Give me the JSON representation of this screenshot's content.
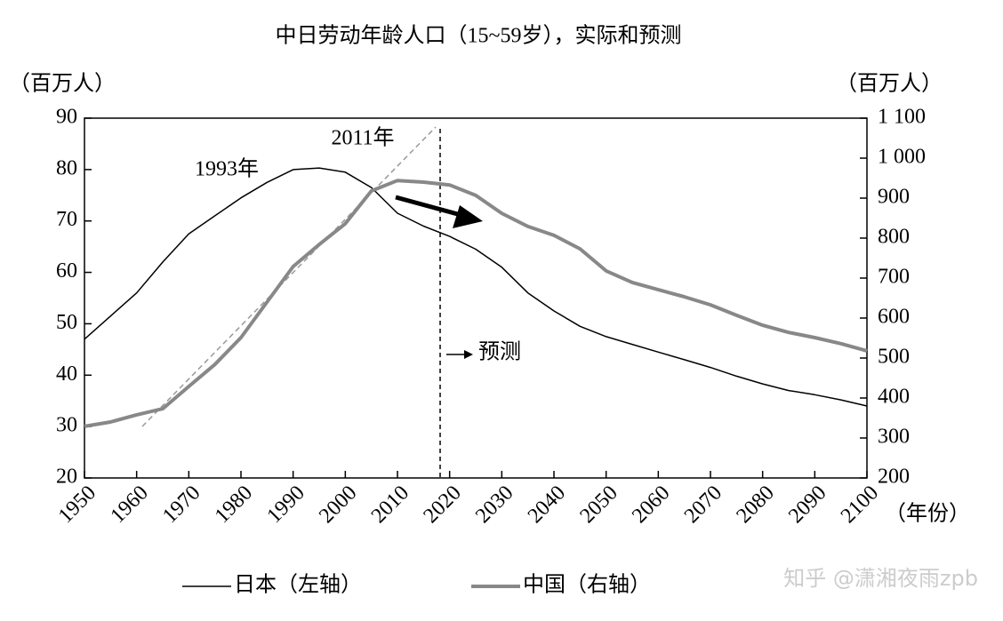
{
  "chart_data": {
    "type": "line",
    "title": "中日劳动年龄人口（15~59岁），实际和预测",
    "y_label": "（百万人）",
    "y2_label": "（百万人）",
    "x_label": "（年份）",
    "x": [
      1950,
      1955,
      1960,
      1965,
      1970,
      1975,
      1980,
      1985,
      1990,
      1995,
      2000,
      2005,
      2010,
      2015,
      2020,
      2025,
      2030,
      2035,
      2040,
      2045,
      2050,
      2055,
      2060,
      2065,
      2070,
      2075,
      2080,
      2085,
      2090,
      2095,
      2100
    ],
    "series": [
      {
        "name": "日本（左轴）",
        "color": "#000000",
        "axis": "y",
        "values": [
          47,
          51.5,
          56,
          62,
          67.5,
          71,
          74.5,
          77.5,
          80,
          80.3,
          79.5,
          76.5,
          71.5,
          69,
          67,
          64.5,
          61,
          56,
          52.5,
          49.5,
          47.5,
          46,
          44.5,
          43,
          41.5,
          39.8,
          38.3,
          37,
          36.2,
          35.2,
          34
        ]
      },
      {
        "name": "中国（右轴）",
        "color": "#888888",
        "axis": "y2",
        "values": [
          329,
          340,
          358,
          373,
          429,
          484,
          551,
          640,
          729,
          784,
          836,
          918,
          944,
          940,
          933,
          907,
          862,
          829,
          807,
          773,
          718,
          689,
          671,
          653,
          633,
          607,
          582,
          564,
          551,
          536,
          518
        ]
      }
    ],
    "xlim": [
      1950,
      2100
    ],
    "xticks": [
      1950,
      1960,
      1970,
      1980,
      1990,
      2000,
      2010,
      2020,
      2030,
      2040,
      2050,
      2060,
      2070,
      2080,
      2090,
      2100
    ],
    "ylim": [
      20,
      90
    ],
    "yticks": [
      20,
      30,
      40,
      50,
      60,
      70,
      80,
      90
    ],
    "y2lim": [
      200,
      1100
    ],
    "y2ticks": [
      200,
      300,
      400,
      500,
      600,
      700,
      800,
      900,
      {
        "value": 1000,
        "label": "1 000"
      },
      {
        "value": 1100,
        "label": "1 100"
      }
    ],
    "annotations": [
      "1993年",
      "2011年",
      "预测"
    ],
    "watermark": "知乎 @潇湘夜雨zpb"
  }
}
